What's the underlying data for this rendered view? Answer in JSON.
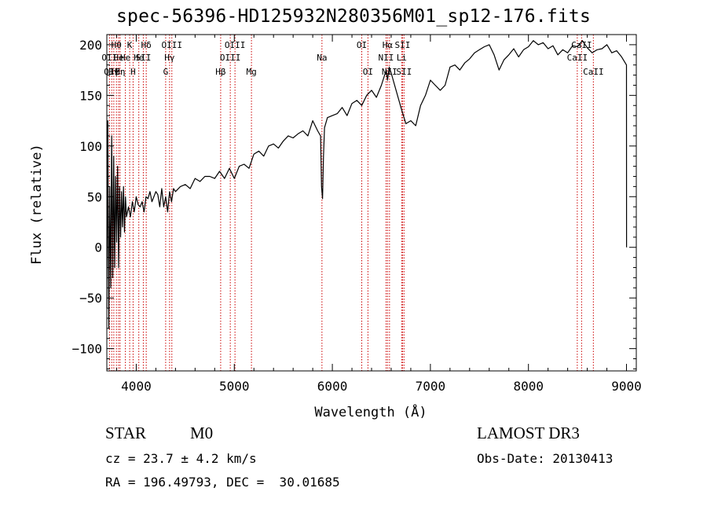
{
  "title": "spec-56396-HD125932N280356M01_sp12-176.fits",
  "info": {
    "class_label": "STAR",
    "subclass_label": "M0",
    "cz_text": "cz = 23.7 ± 4.2 km/s",
    "radec_text": "RA = 196.49793, DEC =  30.01685",
    "survey_text": "LAMOST DR3",
    "obsdate_text": "Obs-Date: 20130413"
  },
  "chart_data": {
    "type": "line",
    "xlabel": "Wavelength (Å)",
    "ylabel": "Flux (relative)",
    "xlim": [
      3700,
      9100
    ],
    "ylim": [
      -122,
      210
    ],
    "xticks": [
      4000,
      5000,
      6000,
      7000,
      8000,
      9000
    ],
    "yticks": [
      -100,
      -50,
      0,
      50,
      100,
      150,
      200
    ],
    "line_color": "#000000",
    "marker_color": "#cc0000",
    "series": [
      {
        "x": [
          3700,
          3710,
          3720,
          3730,
          3740,
          3750,
          3760,
          3770,
          3780,
          3790,
          3800,
          3810,
          3820,
          3830,
          3840,
          3850,
          3860,
          3870,
          3880,
          3890,
          3900,
          3920,
          3940,
          3960,
          3980,
          4000,
          4020,
          4040,
          4060,
          4080,
          4100,
          4120,
          4140,
          4160,
          4180,
          4200,
          4220,
          4240,
          4260,
          4280,
          4300,
          4320,
          4340,
          4360,
          4380,
          4400,
          4450,
          4500,
          4550,
          4600,
          4650,
          4700,
          4750,
          4800,
          4850,
          4900,
          4950,
          5000,
          5050,
          5100,
          5150,
          5200,
          5250,
          5300,
          5350,
          5400,
          5450,
          5500,
          5550,
          5600,
          5650,
          5700,
          5750,
          5800,
          5850,
          5880,
          5890,
          5900,
          5910,
          5920,
          5950,
          6000,
          6050,
          6100,
          6150,
          6200,
          6250,
          6300,
          6350,
          6400,
          6450,
          6500,
          6550,
          6563,
          6580,
          6600,
          6650,
          6700,
          6750,
          6800,
          6850,
          6900,
          6950,
          7000,
          7050,
          7100,
          7150,
          7200,
          7250,
          7300,
          7350,
          7400,
          7450,
          7500,
          7550,
          7600,
          7650,
          7700,
          7750,
          7800,
          7850,
          7900,
          7950,
          8000,
          8050,
          8100,
          8150,
          8200,
          8250,
          8300,
          8350,
          8400,
          8450,
          8500,
          8550,
          8600,
          8650,
          8700,
          8750,
          8800,
          8850,
          8900,
          8950,
          9000,
          9001
        ],
        "y": [
          -60,
          125,
          -80,
          60,
          -40,
          110,
          -30,
          90,
          -20,
          70,
          5,
          80,
          -20,
          60,
          10,
          55,
          20,
          60,
          15,
          50,
          30,
          40,
          30,
          45,
          35,
          50,
          42,
          40,
          45,
          35,
          50,
          48,
          55,
          45,
          50,
          55,
          52,
          40,
          58,
          40,
          50,
          35,
          55,
          45,
          58,
          55,
          60,
          62,
          58,
          68,
          65,
          70,
          70,
          68,
          75,
          68,
          78,
          68,
          80,
          82,
          78,
          92,
          95,
          90,
          100,
          102,
          98,
          105,
          110,
          108,
          112,
          115,
          110,
          125,
          115,
          110,
          60,
          48,
          90,
          118,
          128,
          130,
          132,
          138,
          130,
          142,
          145,
          140,
          150,
          155,
          148,
          160,
          175,
          165,
          178,
          172,
          155,
          138,
          122,
          125,
          120,
          140,
          150,
          165,
          160,
          155,
          160,
          178,
          180,
          175,
          182,
          186,
          192,
          195,
          198,
          200,
          190,
          175,
          185,
          190,
          196,
          188,
          195,
          198,
          204,
          200,
          202,
          196,
          199,
          190,
          195,
          192,
          199,
          198,
          204,
          197,
          192,
          195,
          196,
          200,
          192,
          194,
          188,
          180,
          0
        ]
      }
    ],
    "line_markers": [
      {
        "x": 3727,
        "label": "OII",
        "row": 1
      },
      {
        "x": 3750,
        "label": "OII",
        "row": 2
      },
      {
        "x": 3771,
        "label": "Hγ",
        "row": 2
      },
      {
        "x": 3798,
        "label": "Hθ",
        "row": 0
      },
      {
        "x": 3820,
        "label": "He",
        "row": 1
      },
      {
        "x": 3835,
        "label": "Hη",
        "row": 2
      },
      {
        "x": 3889,
        "label": "He",
        "row": 1
      },
      {
        "x": 3933,
        "label": "K",
        "row": 0
      },
      {
        "x": 3968,
        "label": "H",
        "row": 2
      },
      {
        "x": 4026,
        "label": "He",
        "row": 1
      },
      {
        "x": 4072,
        "label": "SII",
        "row": 1
      },
      {
        "x": 4102,
        "label": "Hδ",
        "row": 0
      },
      {
        "x": 4300,
        "label": "G",
        "row": 2
      },
      {
        "x": 4340,
        "label": "Hγ",
        "row": 1
      },
      {
        "x": 4363,
        "label": "OIII",
        "row": 0
      },
      {
        "x": 4861,
        "label": "Hβ",
        "row": 2
      },
      {
        "x": 4959,
        "label": "OIII",
        "row": 1
      },
      {
        "x": 5007,
        "label": "OIII",
        "row": 0
      },
      {
        "x": 5175,
        "label": "Mg",
        "row": 2
      },
      {
        "x": 5894,
        "label": "Na",
        "row": 1
      },
      {
        "x": 6300,
        "label": "OI",
        "row": 0
      },
      {
        "x": 6363,
        "label": "OI",
        "row": 2
      },
      {
        "x": 6548,
        "label": "NII",
        "row": 1
      },
      {
        "x": 6563,
        "label": "Hα",
        "row": 0
      },
      {
        "x": 6583,
        "label": "NII",
        "row": 2
      },
      {
        "x": 6707,
        "label": "Li",
        "row": 1
      },
      {
        "x": 6716,
        "label": "SII",
        "row": 0
      },
      {
        "x": 6731,
        "label": "SII",
        "row": 2
      },
      {
        "x": 8498,
        "label": "CaII",
        "row": 1
      },
      {
        "x": 8542,
        "label": "CaII",
        "row": 0
      },
      {
        "x": 8662,
        "label": "CaII",
        "row": 2
      }
    ]
  }
}
